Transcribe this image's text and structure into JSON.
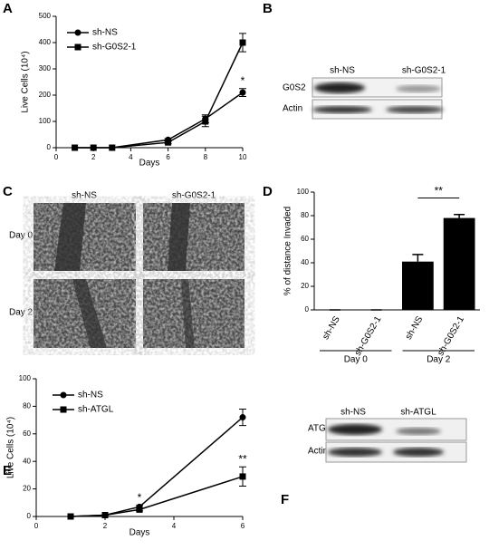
{
  "chart_data": [
    {
      "type": "line",
      "panel": "A",
      "x_label": "Days",
      "y_label": "Live Cells (10⁴)",
      "xlim": [
        0,
        10
      ],
      "xticks": [
        0,
        2,
        4,
        6,
        8,
        10
      ],
      "ylim": [
        0,
        500
      ],
      "yticks": [
        0,
        100,
        200,
        300,
        400,
        500
      ],
      "series": [
        {
          "name": "sh-NS",
          "marker": "circle",
          "color": "#000000",
          "x": [
            1,
            2,
            3,
            6,
            8,
            10
          ],
          "values": [
            0,
            0,
            0,
            30,
            110,
            210
          ],
          "errors": [
            0,
            0,
            0,
            5,
            15,
            15
          ]
        },
        {
          "name": "sh-G0S2-1",
          "marker": "square",
          "color": "#000000",
          "x": [
            1,
            2,
            3,
            6,
            8,
            10
          ],
          "values": [
            0,
            0,
            0,
            20,
            100,
            400
          ],
          "errors": [
            0,
            0,
            0,
            5,
            20,
            35
          ]
        }
      ],
      "annotations": [
        "*"
      ]
    },
    {
      "type": "bar",
      "panel": "D",
      "y_label": "% of distance Invaded",
      "categories": [
        "sh-NS",
        "sh-G0S2-1",
        "sh-NS",
        "sh-G0S2-1"
      ],
      "values": [
        0,
        0,
        41,
        78
      ],
      "errors": [
        0,
        0,
        6,
        3
      ],
      "color": "#000000",
      "ylim": [
        0,
        100
      ],
      "yticks": [
        0,
        20,
        40,
        60,
        80,
        100
      ],
      "groups": [
        "Day 0",
        "Day 2"
      ],
      "annotations": [
        "**"
      ]
    },
    {
      "type": "line",
      "panel": "E",
      "x_label": "Days",
      "y_label": "Live Cells (10⁴)",
      "xlim": [
        0,
        6
      ],
      "xticks": [
        0,
        2,
        4,
        6
      ],
      "ylim": [
        0,
        100
      ],
      "yticks": [
        0,
        20,
        40,
        60,
        80,
        100
      ],
      "series": [
        {
          "name": "sh-NS",
          "marker": "circle",
          "color": "#000000",
          "x": [
            1,
            2,
            3,
            6
          ],
          "values": [
            0,
            1,
            7,
            72
          ],
          "errors": [
            0,
            0,
            1,
            6
          ]
        },
        {
          "name": "sh-ATGL",
          "marker": "square",
          "color": "#000000",
          "x": [
            1,
            2,
            3,
            6
          ],
          "values": [
            0,
            1,
            5,
            29
          ],
          "errors": [
            0,
            0,
            1,
            7
          ]
        }
      ],
      "annotations": [
        "*",
        "**"
      ]
    }
  ],
  "blot_b": {
    "panel": "B",
    "columns": [
      "sh-NS",
      "sh-G0S2-1"
    ],
    "rows": [
      "G0S2",
      "Actin"
    ]
  },
  "images_c": {
    "panel": "C",
    "columns": [
      "sh-NS",
      "sh-G0S2-1"
    ],
    "rows": [
      "Day 0",
      "Day 2"
    ]
  },
  "blot_f": {
    "panel": "F",
    "columns": [
      "sh-NS",
      "sh-ATGL"
    ],
    "rows": [
      "ATGL",
      "Actin"
    ]
  }
}
